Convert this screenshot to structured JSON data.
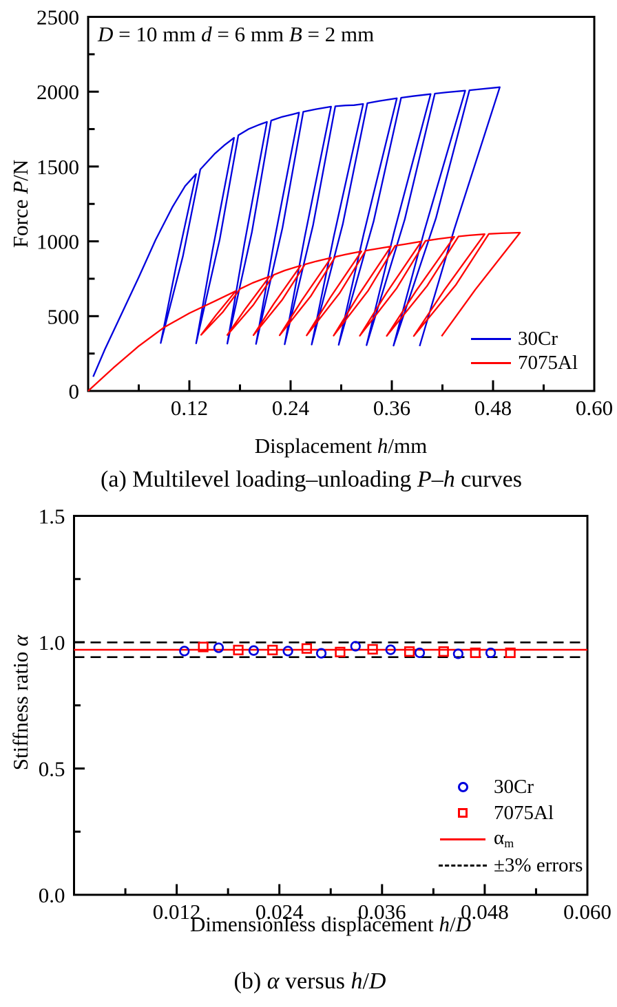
{
  "figure": {
    "background": "#ffffff"
  },
  "colors": {
    "blue": "#0000dd",
    "red": "#ff0000",
    "black": "#000000"
  },
  "chart_data": [
    {
      "id": "a",
      "type": "line",
      "annotation_parts": [
        {
          "t": "D",
          "i": true
        },
        {
          "t": " = 10 mm "
        },
        {
          "t": "d",
          "i": true
        },
        {
          "t": " = 6 mm "
        },
        {
          "t": "B",
          "i": true
        },
        {
          "t": " = 2 mm"
        }
      ],
      "xlabel_parts": [
        {
          "t": "Displacement "
        },
        {
          "t": "h",
          "i": true
        },
        {
          "t": "/mm"
        }
      ],
      "ylabel_parts": [
        {
          "t": "Force "
        },
        {
          "t": "P",
          "i": true
        },
        {
          "t": "/N"
        }
      ],
      "caption_parts": [
        {
          "t": "(a) Multilevel loading–unloading "
        },
        {
          "t": "P",
          "i": true
        },
        {
          "t": "–"
        },
        {
          "t": "h",
          "i": true
        },
        {
          "t": " curves"
        }
      ],
      "xlim": [
        0,
        0.6
      ],
      "ylim": [
        0,
        2500
      ],
      "xticks": [
        {
          "v": 0.12,
          "label": "0.12"
        },
        {
          "v": 0.24,
          "label": "0.24"
        },
        {
          "v": 0.36,
          "label": "0.36"
        },
        {
          "v": 0.48,
          "label": "0.48"
        },
        {
          "v": 0.6,
          "label": "0.60"
        }
      ],
      "yticks": [
        {
          "v": 0,
          "label": "0"
        },
        {
          "v": 500,
          "label": "500"
        },
        {
          "v": 1000,
          "label": "1000"
        },
        {
          "v": 1500,
          "label": "1500"
        },
        {
          "v": 2000,
          "label": "2000"
        },
        {
          "v": 2500,
          "label": "2500"
        }
      ],
      "x_minor": 0.06,
      "y_minor": 250,
      "legend": [
        {
          "label": "30Cr",
          "color_key": "blue",
          "marker": "line"
        },
        {
          "label": "7075Al",
          "color_key": "red",
          "marker": "line"
        }
      ],
      "series": [
        {
          "name": "30Cr",
          "color_key": "blue",
          "envelope": [
            [
              0.006,
              95
            ],
            [
              0.02,
              280
            ],
            [
              0.04,
              520
            ],
            [
              0.06,
              760
            ],
            [
              0.08,
              1010
            ],
            [
              0.1,
              1230
            ],
            [
              0.115,
              1370
            ],
            [
              0.128,
              1450
            ],
            [
              0.15,
              1585
            ],
            [
              0.162,
              1645
            ],
            [
              0.173,
              1692
            ],
            [
              0.19,
              1750
            ],
            [
              0.202,
              1778
            ],
            [
              0.212,
              1798
            ],
            [
              0.23,
              1832
            ],
            [
              0.242,
              1848
            ],
            [
              0.25,
              1860
            ],
            [
              0.27,
              1883
            ],
            [
              0.288,
              1900
            ],
            [
              0.305,
              1908
            ],
            [
              0.315,
              1910
            ],
            [
              0.326,
              1918
            ],
            [
              0.345,
              1938
            ],
            [
              0.366,
              1956
            ],
            [
              0.385,
              1970
            ],
            [
              0.406,
              1984
            ],
            [
              0.425,
              1996
            ],
            [
              0.447,
              2007
            ],
            [
              0.465,
              2017
            ],
            [
              0.488,
              2030
            ]
          ],
          "cycles": [
            {
              "peak": 0.128,
              "bottom": 0.086,
              "p_bottom": 320
            },
            {
              "peak": 0.173,
              "bottom": 0.128,
              "p_bottom": 318
            },
            {
              "peak": 0.212,
              "bottom": 0.165,
              "p_bottom": 316
            },
            {
              "peak": 0.25,
              "bottom": 0.199,
              "p_bottom": 314
            },
            {
              "peak": 0.288,
              "bottom": 0.233,
              "p_bottom": 312
            },
            {
              "peak": 0.326,
              "bottom": 0.265,
              "p_bottom": 310
            },
            {
              "peak": 0.366,
              "bottom": 0.297,
              "p_bottom": 308
            },
            {
              "peak": 0.406,
              "bottom": 0.33,
              "p_bottom": 306
            },
            {
              "peak": 0.447,
              "bottom": 0.362,
              "p_bottom": 303
            },
            {
              "peak": 0.488,
              "bottom": 0.393,
              "p_bottom": 300
            }
          ]
        },
        {
          "name": "7075Al",
          "color_key": "red",
          "envelope": [
            [
              0,
              0
            ],
            [
              0.03,
              155
            ],
            [
              0.06,
              300
            ],
            [
              0.09,
              425
            ],
            [
              0.12,
              520
            ],
            [
              0.15,
              600
            ],
            [
              0.175,
              668
            ],
            [
              0.195,
              722
            ],
            [
              0.215,
              765
            ],
            [
              0.233,
              805
            ],
            [
              0.252,
              838
            ],
            [
              0.27,
              866
            ],
            [
              0.288,
              890
            ],
            [
              0.305,
              912
            ],
            [
              0.324,
              933
            ],
            [
              0.34,
              948
            ],
            [
              0.359,
              966
            ],
            [
              0.377,
              982
            ],
            [
              0.395,
              999
            ],
            [
              0.415,
              1016
            ],
            [
              0.434,
              1030
            ],
            [
              0.452,
              1040
            ],
            [
              0.47,
              1048
            ],
            [
              0.49,
              1054
            ],
            [
              0.512,
              1058
            ]
          ],
          "cycles": [
            {
              "peak": 0.175,
              "bottom": 0.134,
              "p_bottom": 375
            },
            {
              "peak": 0.215,
              "bottom": 0.165,
              "p_bottom": 374
            },
            {
              "peak": 0.252,
              "bottom": 0.196,
              "p_bottom": 373
            },
            {
              "peak": 0.288,
              "bottom": 0.227,
              "p_bottom": 372
            },
            {
              "peak": 0.324,
              "bottom": 0.259,
              "p_bottom": 371
            },
            {
              "peak": 0.359,
              "bottom": 0.291,
              "p_bottom": 370
            },
            {
              "peak": 0.395,
              "bottom": 0.322,
              "p_bottom": 369
            },
            {
              "peak": 0.434,
              "bottom": 0.354,
              "p_bottom": 368
            },
            {
              "peak": 0.47,
              "bottom": 0.386,
              "p_bottom": 367
            },
            {
              "peak": 0.512,
              "bottom": 0.419,
              "p_bottom": 366
            }
          ]
        }
      ]
    },
    {
      "id": "b",
      "type": "scatter",
      "xlabel_parts": [
        {
          "t": "Dimensionless displacement "
        },
        {
          "t": "h",
          "i": true
        },
        {
          "t": "/"
        },
        {
          "t": "D",
          "i": true
        }
      ],
      "ylabel_parts": [
        {
          "t": "Stiffness ratio "
        },
        {
          "t": "α",
          "i": true
        }
      ],
      "caption_parts": [
        {
          "t": "(b) "
        },
        {
          "t": "α",
          "i": true
        },
        {
          "t": " versus "
        },
        {
          "t": "h",
          "i": true
        },
        {
          "t": "/"
        },
        {
          "t": "D",
          "i": true
        }
      ],
      "xlim": [
        0,
        0.06
      ],
      "ylim": [
        0.0,
        1.5
      ],
      "xticks": [
        {
          "v": 0.012,
          "label": "0.012"
        },
        {
          "v": 0.024,
          "label": "0.024"
        },
        {
          "v": 0.036,
          "label": "0.036"
        },
        {
          "v": 0.048,
          "label": "0.048"
        },
        {
          "v": 0.06,
          "label": "0.060"
        }
      ],
      "yticks": [
        {
          "v": 0.0,
          "label": "0.0"
        },
        {
          "v": 0.5,
          "label": "0.5"
        },
        {
          "v": 1.0,
          "label": "1.0"
        },
        {
          "v": 1.5,
          "label": "1.5"
        }
      ],
      "x_minor": 0.006,
      "y_minor": 0.25,
      "ref_lines": [
        {
          "name": "alpha-m",
          "y": 0.97,
          "style": "solid",
          "color_key": "red"
        },
        {
          "name": "upper-error",
          "y": 0.9991,
          "style": "dashed",
          "color_key": "black"
        },
        {
          "name": "lower-error",
          "y": 0.9409,
          "style": "dashed",
          "color_key": "black"
        }
      ],
      "series": [
        {
          "name": "30Cr",
          "marker": "circle",
          "color_key": "blue",
          "points": [
            [
              0.0129,
              0.965
            ],
            [
              0.0169,
              0.978
            ],
            [
              0.021,
              0.967
            ],
            [
              0.025,
              0.965
            ],
            [
              0.0289,
              0.956
            ],
            [
              0.0329,
              0.984
            ],
            [
              0.037,
              0.97
            ],
            [
              0.0404,
              0.958
            ],
            [
              0.0449,
              0.954
            ],
            [
              0.0487,
              0.958
            ]
          ]
        },
        {
          "name": "7075Al",
          "marker": "square",
          "color_key": "red",
          "points": [
            [
              0.0151,
              0.981
            ],
            [
              0.0192,
              0.969
            ],
            [
              0.0232,
              0.969
            ],
            [
              0.0272,
              0.975
            ],
            [
              0.0311,
              0.961
            ],
            [
              0.0349,
              0.972
            ],
            [
              0.0392,
              0.963
            ],
            [
              0.0432,
              0.963
            ],
            [
              0.0469,
              0.958
            ],
            [
              0.051,
              0.958
            ]
          ]
        }
      ],
      "legend": [
        {
          "marker": "circle",
          "color_key": "blue",
          "label_parts": [
            {
              "t": "30Cr"
            }
          ]
        },
        {
          "marker": "square",
          "color_key": "red",
          "label_parts": [
            {
              "t": "7075Al"
            }
          ]
        },
        {
          "marker": "solid-line",
          "color_key": "red",
          "label_parts": [
            {
              "t": "α"
            },
            {
              "t": "m",
              "sub": true
            }
          ]
        },
        {
          "marker": "dashed-line",
          "color_key": "black",
          "label_parts": [
            {
              "t": "±3% errors"
            }
          ]
        }
      ]
    }
  ]
}
